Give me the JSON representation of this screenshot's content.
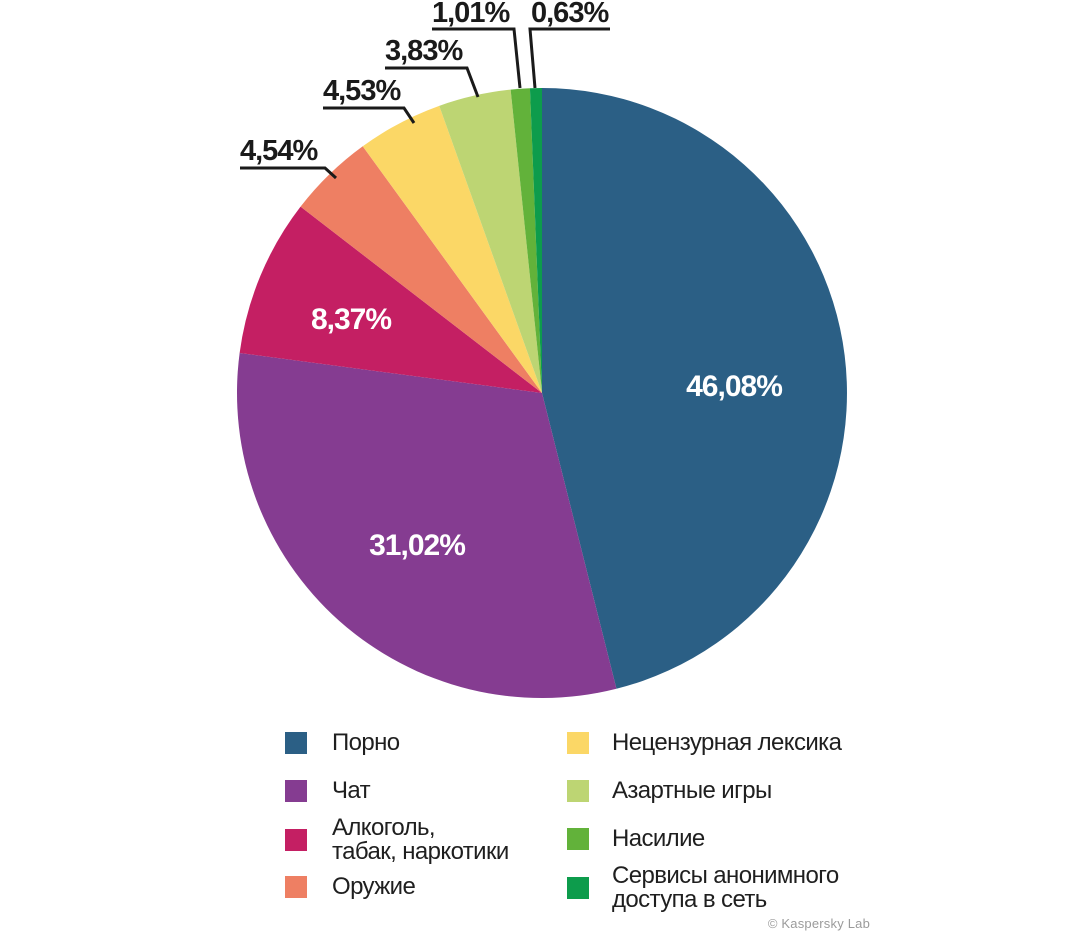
{
  "chart_data": {
    "type": "pie",
    "title": "",
    "unit": "%",
    "decimal_separator": ",",
    "direction": "clockwise",
    "start_angle_deg": 0,
    "slices": [
      {
        "label": "Порно",
        "value": 46.08,
        "display": "46,08%",
        "color": "#2b5f85",
        "label_placement": "inside"
      },
      {
        "label": "Чат",
        "value": 31.02,
        "display": "31,02%",
        "color": "#853c91",
        "label_placement": "inside"
      },
      {
        "label": "Алкоголь, табак, наркотики",
        "value": 8.37,
        "display": "8,37%",
        "color": "#c41f63",
        "label_placement": "inside"
      },
      {
        "label": "Оружие",
        "value": 4.54,
        "display": "4,54%",
        "color": "#ee7f63",
        "label_placement": "callout"
      },
      {
        "label": "Нецензурная лексика",
        "value": 4.53,
        "display": "4,53%",
        "color": "#fbd766",
        "label_placement": "callout"
      },
      {
        "label": "Азартные игры",
        "value": 3.83,
        "display": "3,83%",
        "color": "#bdd573",
        "label_placement": "callout"
      },
      {
        "label": "Насилие",
        "value": 1.01,
        "display": "1,01%",
        "color": "#62b23a",
        "label_placement": "callout"
      },
      {
        "label": "Сервисы анонимного доступа в сеть",
        "value": 0.63,
        "display": "0,63%",
        "color": "#0d9c4c",
        "label_placement": "callout"
      }
    ]
  },
  "legend": {
    "columns": [
      [
        {
          "slice_index": 0,
          "lines": [
            "Порно"
          ]
        },
        {
          "slice_index": 1,
          "lines": [
            "Чат"
          ]
        },
        {
          "slice_index": 2,
          "lines": [
            "Алкоголь,",
            "табак, наркотики"
          ]
        },
        {
          "slice_index": 3,
          "lines": [
            "Оружие"
          ]
        }
      ],
      [
        {
          "slice_index": 4,
          "lines": [
            "Нецензурная лексика"
          ]
        },
        {
          "slice_index": 5,
          "lines": [
            "Азартные игры"
          ]
        },
        {
          "slice_index": 6,
          "lines": [
            "Насилие"
          ]
        },
        {
          "slice_index": 7,
          "lines": [
            "Сервисы анонимного",
            "доступа в сеть"
          ]
        }
      ]
    ]
  },
  "footer": {
    "copyright": "© Kaspersky Lab"
  }
}
